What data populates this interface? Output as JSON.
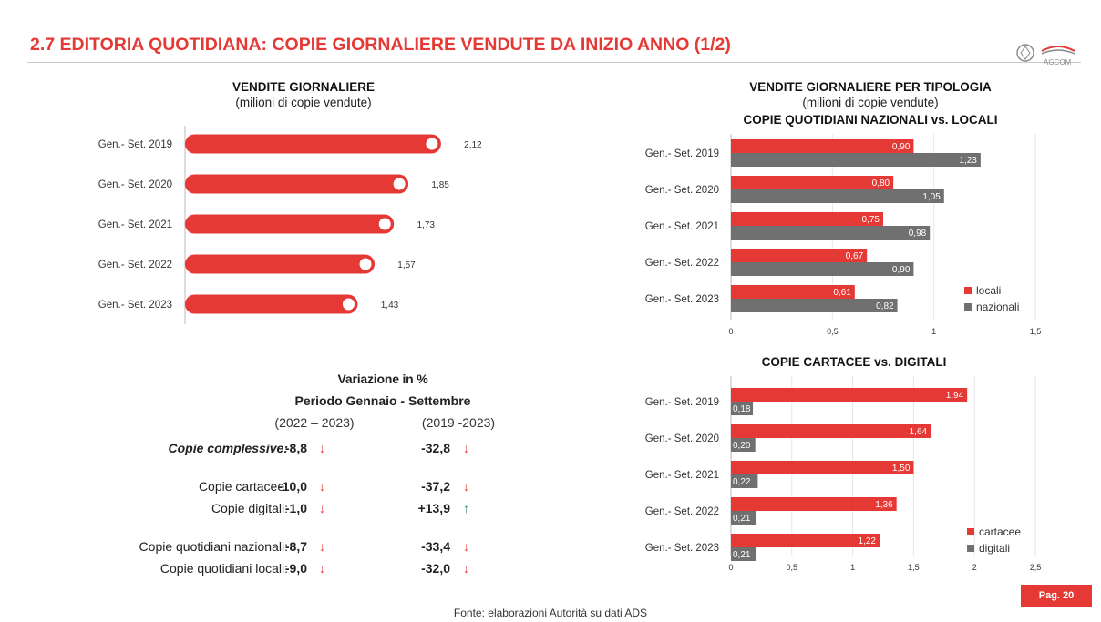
{
  "header": {
    "title": "2.7 EDITORIA QUOTIDIANA: COPIE GIORNALIERE VENDUTE DA INIZIO ANNO (1/2)",
    "logo_text": "AGCOM"
  },
  "colors": {
    "accent": "#e53935",
    "gray": "#707070",
    "green": "#2e8b57"
  },
  "chart_data": [
    {
      "type": "bar",
      "title": "VENDITE GIORNALIERE",
      "subtitle": "(milioni di copie vendute)",
      "categories": [
        "Gen.- Set. 2019",
        "Gen.- Set. 2020",
        "Gen.- Set. 2021",
        "Gen.- Set. 2022",
        "Gen.- Set. 2023"
      ],
      "values": [
        2.12,
        1.85,
        1.73,
        1.57,
        1.43
      ],
      "labels": [
        "2,12",
        "1,85",
        "1,73",
        "1,57",
        "1,43"
      ],
      "orientation": "horizontal",
      "grid": false
    },
    {
      "type": "bar",
      "title": "VENDITE GIORNALIERE PER TIPOLOGIA",
      "subtitle": "(milioni di copie vendute)",
      "subtitle2": "COPIE QUOTIDIANI NAZIONALI vs. LOCALI",
      "categories": [
        "Gen.- Set. 2019",
        "Gen.- Set. 2020",
        "Gen.- Set. 2021",
        "Gen.- Set. 2022",
        "Gen.- Set. 2023"
      ],
      "series": [
        {
          "name": "locali",
          "values": [
            0.9,
            0.8,
            0.75,
            0.67,
            0.61
          ],
          "labels": [
            "0,90",
            "0,80",
            "0,75",
            "0,67",
            "0,61"
          ],
          "color": "#e53935"
        },
        {
          "name": "nazionali",
          "values": [
            1.23,
            1.05,
            0.98,
            0.9,
            0.82
          ],
          "labels": [
            "1,23",
            "1,05",
            "0,98",
            "0,90",
            "0,82"
          ],
          "color": "#707070"
        }
      ],
      "xlim": [
        0,
        1.5
      ],
      "ticks": [
        "0",
        "0,5",
        "1",
        "1,5"
      ],
      "orientation": "horizontal",
      "legend": "bottom-right",
      "grid": true
    },
    {
      "type": "bar",
      "title": "COPIE CARTACEE vs. DIGITALI",
      "categories": [
        "Gen.- Set. 2019",
        "Gen.- Set. 2020",
        "Gen.- Set. 2021",
        "Gen.- Set. 2022",
        "Gen.- Set. 2023"
      ],
      "series": [
        {
          "name": "cartacee",
          "values": [
            1.94,
            1.64,
            1.5,
            1.36,
            1.22
          ],
          "labels": [
            "1,94",
            "1,64",
            "1,50",
            "1,36",
            "1,22"
          ],
          "color": "#e53935"
        },
        {
          "name": "digitali",
          "values": [
            0.18,
            0.2,
            0.22,
            0.21,
            0.21
          ],
          "labels": [
            "0,18",
            "0,20",
            "0,22",
            "0,21",
            "0,21"
          ],
          "color": "#707070"
        }
      ],
      "xlim": [
        0,
        2.5
      ],
      "ticks": [
        "0",
        "0,5",
        "1",
        "1,5",
        "2",
        "2,5"
      ],
      "orientation": "horizontal",
      "legend": "bottom-right",
      "grid": true
    }
  ],
  "variation": {
    "title": "Variazione in %",
    "subtitle": "Periodo Gennaio - Settembre",
    "col1": "(2022 – 2023)",
    "col2": "(2019 -2023)",
    "rows": [
      {
        "label": "Copie complessive:",
        "v1": "-8,8",
        "d1": "down",
        "v2": "-32,8",
        "d2": "down"
      },
      {
        "label": "Copie cartacee:",
        "v1": "-10,0",
        "d1": "down",
        "v2": "-37,2",
        "d2": "down"
      },
      {
        "label": "Copie digitali:",
        "v1": "-1,0",
        "d1": "down",
        "v2": "+13,9",
        "d2": "up"
      },
      {
        "label": "Copie quotidiani nazionali:",
        "v1": "-8,7",
        "d1": "down",
        "v2": "-33,4",
        "d2": "down"
      },
      {
        "label": "Copie quotidiani locali:",
        "v1": "-9,0",
        "d1": "down",
        "v2": "-32,0",
        "d2": "down"
      }
    ]
  },
  "footer": {
    "source": "Fonte: elaborazioni Autorità su dati ADS",
    "page": "Pag. 20"
  }
}
